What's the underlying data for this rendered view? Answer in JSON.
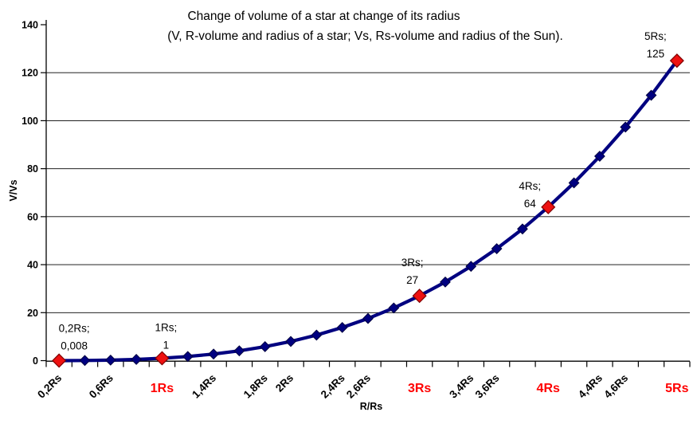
{
  "chart_data": {
    "type": "line",
    "title": "Change of volume of a star at change of its radius",
    "subtitle": "(V, R-volume and radius of a star; Vs, Rs-volume and radius of the Sun).",
    "xlabel": "R/Rs",
    "ylabel": "V/Vs",
    "x": [
      0.2,
      0.4,
      0.6,
      0.8,
      1,
      1.2,
      1.4,
      1.6,
      1.8,
      2,
      2.2,
      2.4,
      2.6,
      2.8,
      3,
      3.2,
      3.4,
      3.6,
      3.8,
      4,
      4.2,
      4.4,
      4.6,
      4.8,
      5
    ],
    "y": [
      0.008,
      0.064,
      0.216,
      0.512,
      1,
      1.728,
      2.744,
      4.096,
      5.832,
      8,
      10.648,
      13.824,
      17.576,
      21.952,
      27,
      32.768,
      39.304,
      46.656,
      54.872,
      64,
      74.088,
      85.184,
      97.336,
      110.592,
      125
    ],
    "ylim": [
      0,
      140
    ],
    "y_ticks": [
      "0",
      "20",
      "40",
      "60",
      "80",
      "100",
      "120",
      "140"
    ],
    "y_tick_values": [
      0,
      20,
      40,
      60,
      80,
      100,
      120,
      140
    ],
    "gridline_values": [
      20,
      40,
      60,
      80,
      100,
      120
    ],
    "grid": "horizontal-only",
    "legend": "none",
    "x_tick_labels": [
      {
        "i": 0,
        "label": "0,2Rs",
        "red": false
      },
      {
        "i": 2,
        "label": "0,6Rs",
        "red": false
      },
      {
        "i": 4,
        "label": "1Rs",
        "red": true
      },
      {
        "i": 6,
        "label": "1,4Rs",
        "red": false
      },
      {
        "i": 8,
        "label": "1,8Rs",
        "red": false
      },
      {
        "i": 9,
        "label": "2Rs",
        "red": false
      },
      {
        "i": 11,
        "label": "2,4Rs",
        "red": false
      },
      {
        "i": 12,
        "label": "2,6Rs",
        "red": false
      },
      {
        "i": 14,
        "label": "3Rs",
        "red": true
      },
      {
        "i": 16,
        "label": "3,4Rs",
        "red": false
      },
      {
        "i": 17,
        "label": "3,6Rs",
        "red": false
      },
      {
        "i": 19,
        "label": "4Rs",
        "red": true
      },
      {
        "i": 21,
        "label": "4,4Rs",
        "red": false
      },
      {
        "i": 22,
        "label": "4,6Rs",
        "red": false
      },
      {
        "i": 24,
        "label": "5Rs",
        "red": true
      }
    ],
    "highlight_indices": [
      0,
      4,
      14,
      19,
      24
    ],
    "annotations": [
      {
        "i": 0,
        "lines": [
          "0,2Rs;",
          "0,008"
        ]
      },
      {
        "i": 4,
        "lines": [
          "1Rs;",
          "1"
        ]
      },
      {
        "i": 14,
        "lines": [
          "3Rs;",
          "27"
        ]
      },
      {
        "i": 19,
        "lines": [
          "4Rs;",
          "64"
        ]
      },
      {
        "i": 24,
        "lines": [
          "5Rs;",
          "125"
        ]
      }
    ],
    "colors": {
      "line": "#000080",
      "marker": "#000080",
      "marker_border": "#000040",
      "highlight": "#EE1111",
      "highlight_border": "#7F0000",
      "axis": "#000000",
      "grid_line": "#000000",
      "text": "#000000",
      "red_label": "#FF0000",
      "background": "#FFFFFF"
    }
  }
}
